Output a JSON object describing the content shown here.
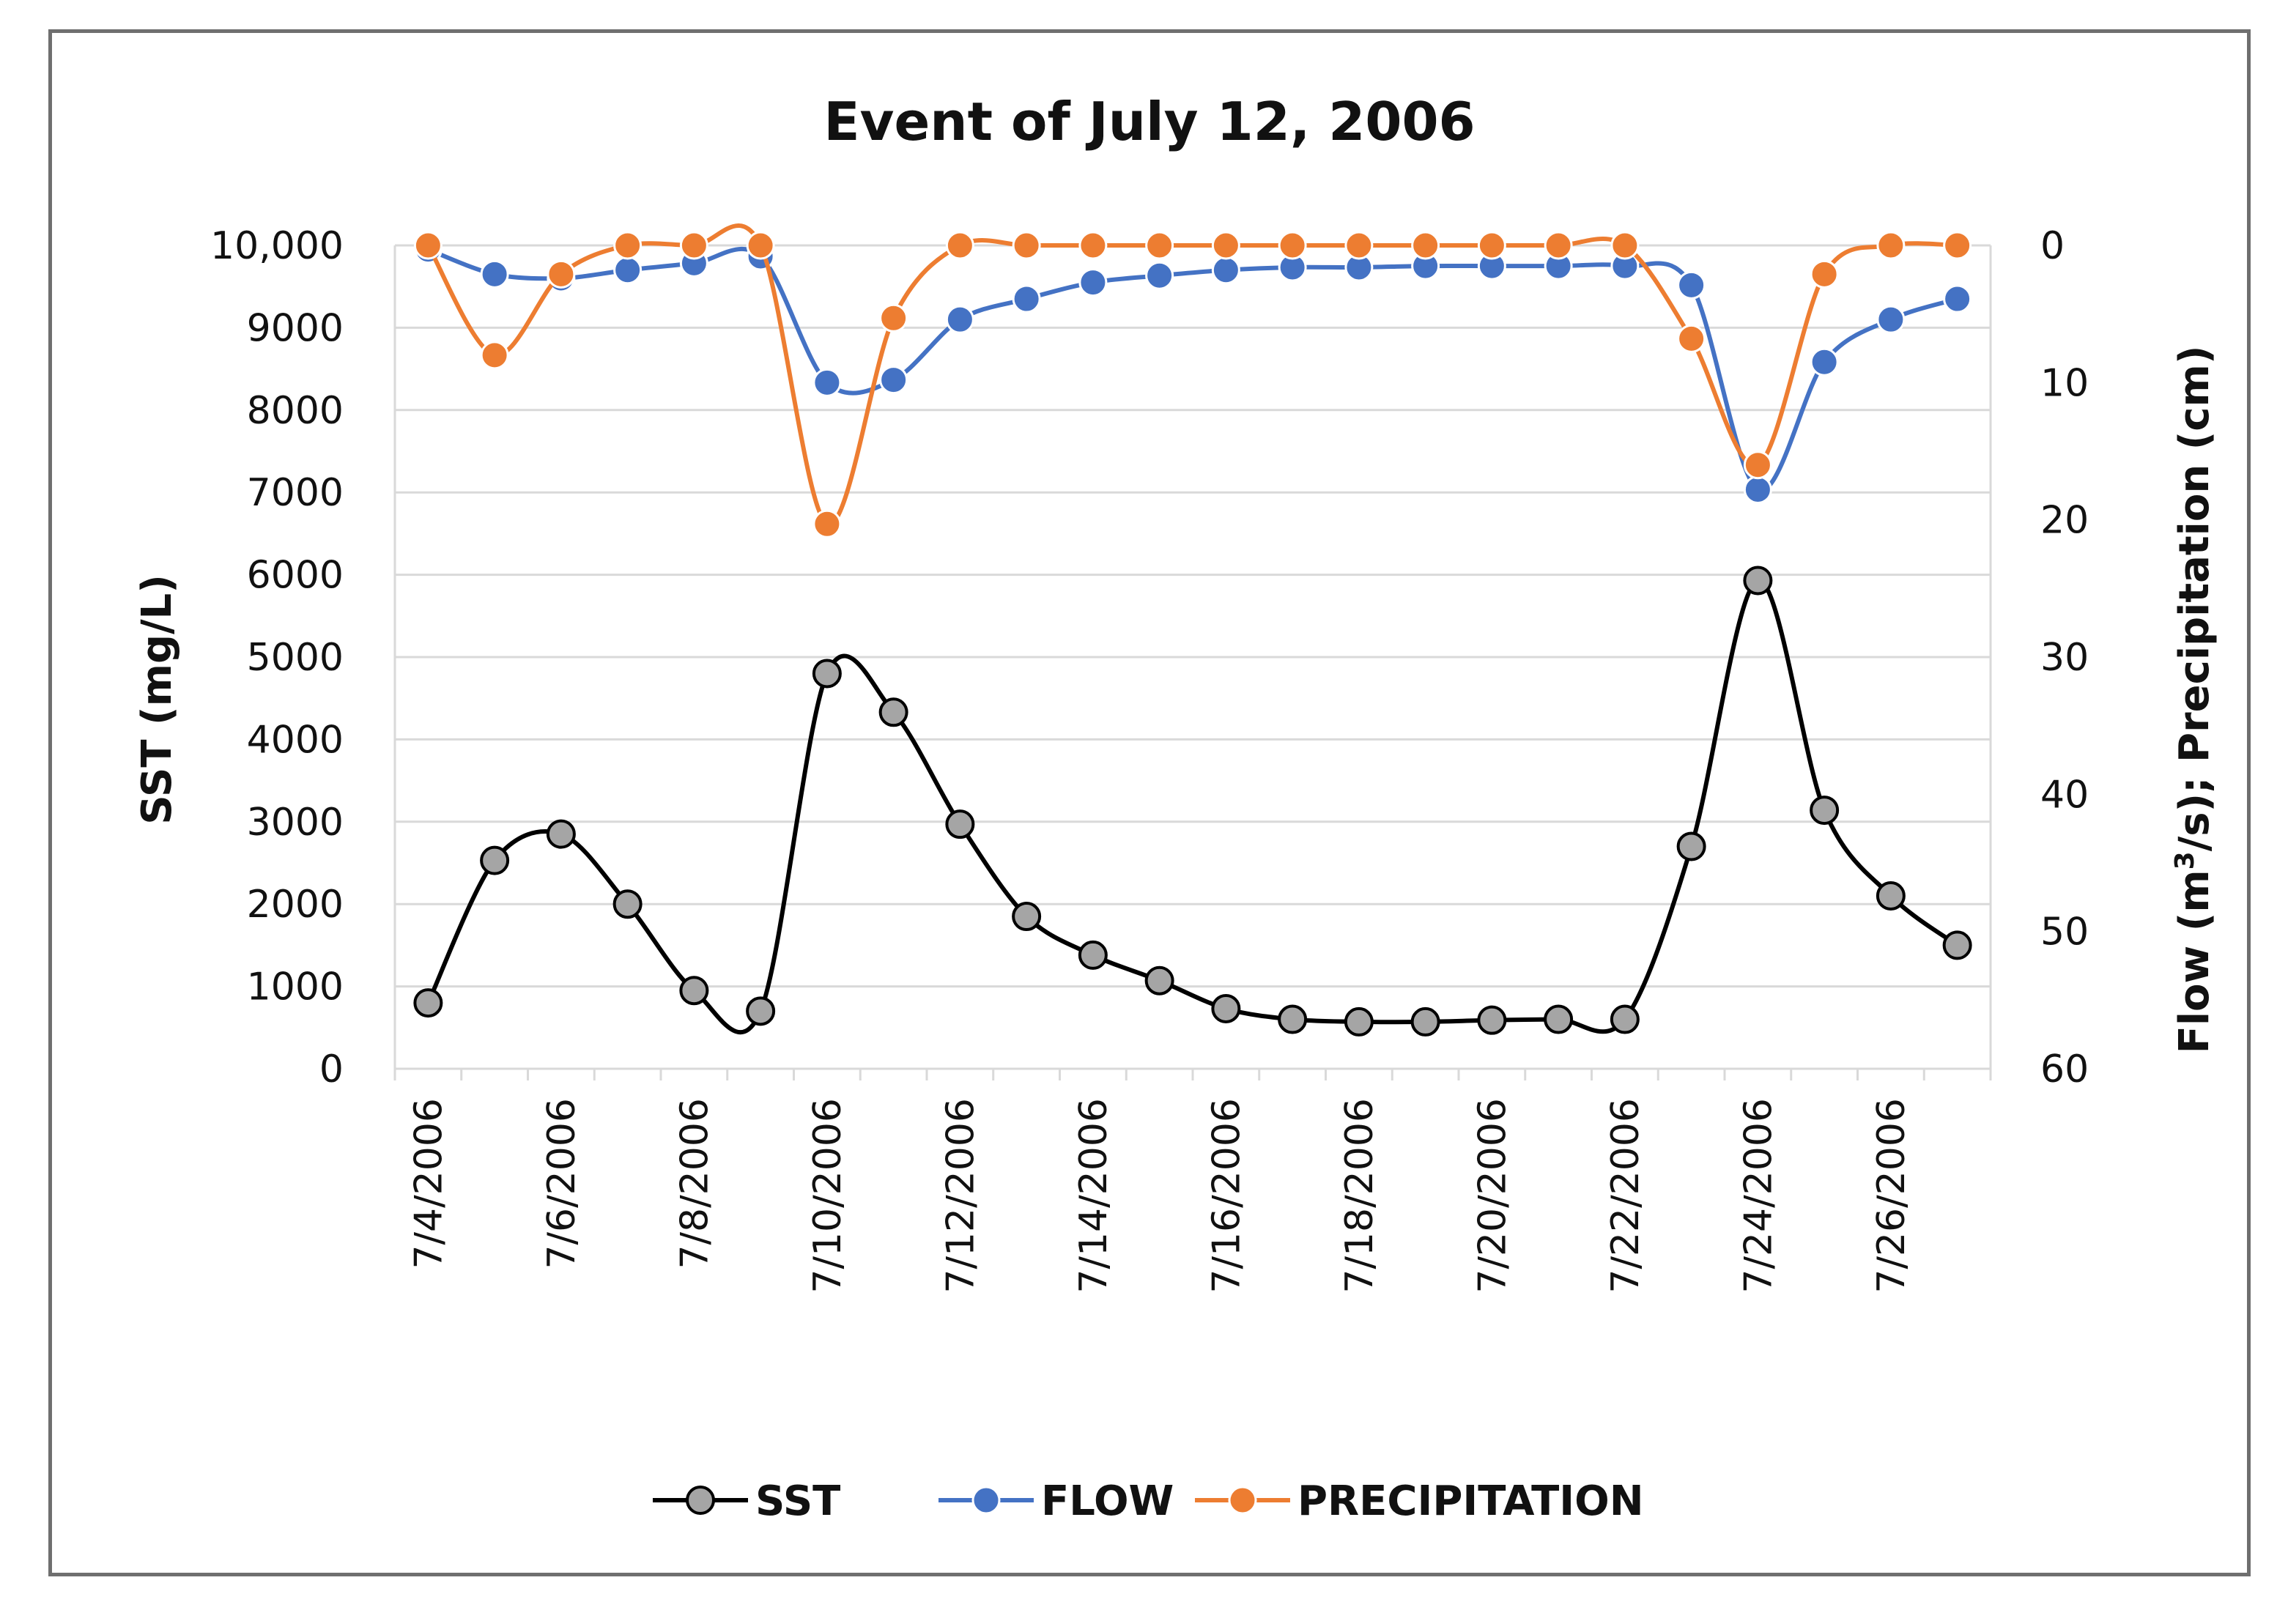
{
  "chart_data": {
    "type": "line",
    "title": "Event of July 12, 2006",
    "x_tick_labels": [
      "7/4/2006",
      "7/6/2006",
      "7/8/2006",
      "7/10/2006",
      "7/12/2006",
      "7/14/2006",
      "7/16/2006",
      "7/18/2006",
      "7/20/2006",
      "7/22/2006",
      "7/24/2006",
      "7/26/2006"
    ],
    "x_dates": [
      "7/4/2006",
      "7/5/2006",
      "7/6/2006",
      "7/7/2006",
      "7/8/2006",
      "7/9/2006",
      "7/10/2006",
      "7/11/2006",
      "7/12/2006",
      "7/13/2006",
      "7/14/2006",
      "7/15/2006",
      "7/16/2006",
      "7/17/2006",
      "7/18/2006",
      "7/19/2006",
      "7/20/2006",
      "7/21/2006",
      "7/22/2006",
      "7/23/2006",
      "7/24/2006",
      "7/25/2006",
      "7/26/2006",
      "7/27/2006"
    ],
    "ylabel_left": "SST (mg/L)",
    "ylabel_right_parts": [
      "Flow (m",
      "3",
      "/s); Precipitation (cm)"
    ],
    "ylim_left": [
      0,
      10000
    ],
    "ylim_right": [
      0,
      60
    ],
    "right_axis_inverted": true,
    "y_tick_labels_left": [
      "0",
      "1000",
      "2000",
      "3000",
      "4000",
      "5000",
      "6000",
      "7000",
      "8000",
      "9000",
      "10,000"
    ],
    "y_tick_values_left": [
      0,
      1000,
      2000,
      3000,
      4000,
      5000,
      6000,
      7000,
      8000,
      9000,
      10000
    ],
    "y_tick_labels_right": [
      "0",
      "10",
      "20",
      "30",
      "40",
      "50",
      "60"
    ],
    "y_tick_values_right": [
      0,
      10,
      20,
      30,
      40,
      50,
      60
    ],
    "grid": true,
    "legend_position": "bottom",
    "series": [
      {
        "name": "SST",
        "axis": "left",
        "color": "#000000",
        "marker_fill": "#a5a5a5",
        "values": [
          800,
          2530,
          2850,
          2000,
          950,
          700,
          4800,
          4330,
          2970,
          1850,
          1380,
          1070,
          730,
          600,
          570,
          570,
          590,
          600,
          600,
          2700,
          5930,
          3140,
          2100,
          1500
        ]
      },
      {
        "name": "FLOW",
        "axis": "right",
        "color": "#4472c4",
        "marker_fill": "#4472c4",
        "values": [
          0.3,
          2.1,
          2.4,
          1.8,
          1.3,
          0.8,
          10.0,
          9.8,
          5.4,
          3.9,
          2.7,
          2.2,
          1.8,
          1.6,
          1.6,
          1.5,
          1.5,
          1.5,
          1.5,
          2.9,
          17.8,
          8.5,
          5.4,
          3.9
        ]
      },
      {
        "name": "PRECIPITATION",
        "axis": "right",
        "color": "#ed7d31",
        "marker_fill": "#ed7d31",
        "values": [
          0,
          8,
          2.1,
          0,
          0,
          0,
          20.3,
          5.3,
          0,
          0,
          0,
          0,
          0,
          0,
          0,
          0,
          0,
          0,
          0,
          6.8,
          16,
          2.1,
          0,
          0
        ]
      }
    ]
  }
}
